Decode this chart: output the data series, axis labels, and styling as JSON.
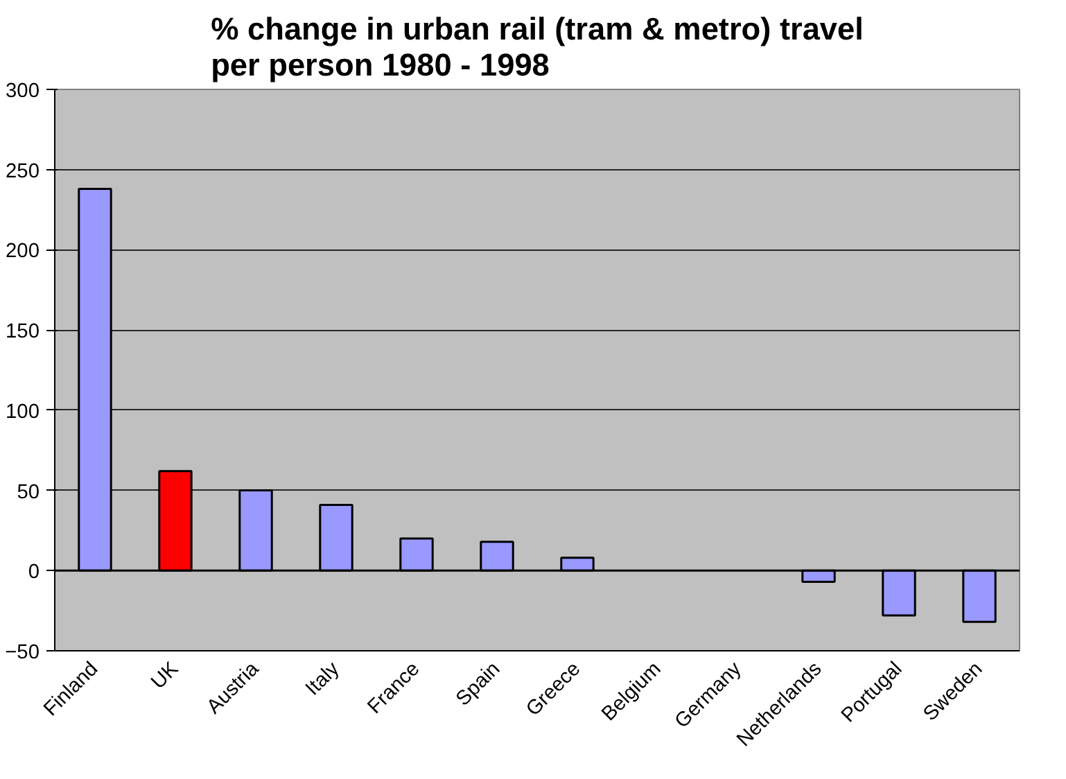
{
  "chart_data": {
    "type": "bar",
    "title": "% change in urban rail (tram & metro) travel\nper person 1980 - 1998",
    "categories": [
      "Finland",
      "UK",
      "Austria",
      "Italy",
      "France",
      "Spain",
      "Greece",
      "Belgium",
      "Germany",
      "Netherlands",
      "Portugal",
      "Sweden"
    ],
    "values": [
      238,
      62,
      50,
      41,
      20,
      18,
      8,
      null,
      null,
      -7,
      -28,
      -32
    ],
    "colors": [
      "#9999ff",
      "#ff0000",
      "#9999ff",
      "#9999ff",
      "#9999ff",
      "#9999ff",
      "#9999ff",
      "#9999ff",
      "#9999ff",
      "#9999ff",
      "#9999ff",
      "#9999ff"
    ],
    "ylim": [
      -50,
      300
    ],
    "yticks": [
      -50,
      0,
      50,
      100,
      150,
      200,
      250,
      300
    ],
    "grid": "y"
  }
}
